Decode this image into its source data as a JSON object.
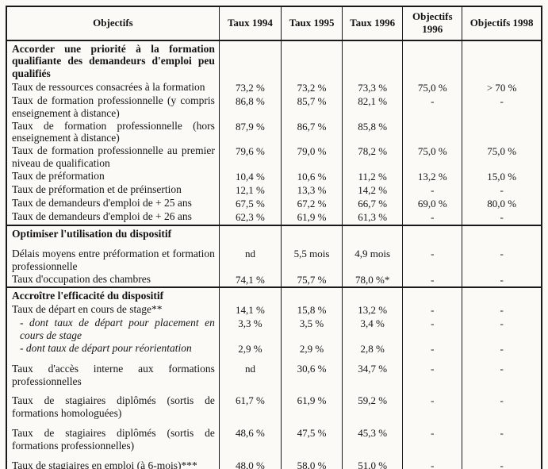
{
  "table": {
    "columns": [
      "Objectifs",
      "Taux 1994",
      "Taux 1995",
      "Taux 1996",
      "Objectifs 1996",
      "Objectifs 1998"
    ],
    "sections": [
      {
        "title": "Accorder une priorité à la formation qualifiante des demandeurs d'emploi peu qualifiés",
        "rows": [
          {
            "label": "Taux de ressources consacrées à la formation",
            "values": [
              "73,2 %",
              "73,2 %",
              "73,3 %",
              "75,0 %",
              "> 70 %"
            ]
          },
          {
            "label": "Taux de formation professionnelle (y compris enseignement à distance)",
            "values": [
              "86,8 %",
              "85,7 %",
              "82,1 %",
              "-",
              "-"
            ]
          },
          {
            "label": "Taux de formation professionnelle (hors enseignement à distance)",
            "values": [
              "87,9 %",
              "86,7 %",
              "85,8 %",
              "",
              ""
            ]
          },
          {
            "label": "Taux de formation professionnelle au premier niveau de qualification",
            "values": [
              "79,6 %",
              "79,0 %",
              "78,2 %",
              "75,0 %",
              "75,0 %"
            ]
          },
          {
            "label": "Taux de préformation",
            "values": [
              "10,4 %",
              "10,6 %",
              "11,2 %",
              "13,2 %",
              "15,0 %"
            ]
          },
          {
            "label": "Taux de préformation et de préinsertion",
            "values": [
              "12,1 %",
              "13,3 %",
              "14,2 %",
              "-",
              "-"
            ]
          },
          {
            "label": "Taux de demandeurs d'emploi de + 25 ans",
            "values": [
              "67,5 %",
              "67,2 %",
              "66,7 %",
              "69,0 %",
              "80,0 %"
            ]
          },
          {
            "label": "Taux de demandeurs d'emploi de + 26 ans",
            "values": [
              "62,3 %",
              "61,9 %",
              "61,3 %",
              "-",
              "-"
            ]
          }
        ]
      },
      {
        "title": "Optimiser l'utilisation du dispositif",
        "rows": [
          {
            "label": "Délais moyens entre préformation et formation professionnelle",
            "values": [
              "nd",
              "5,5 mois",
              "4,9 mois",
              "-",
              "-"
            ]
          },
          {
            "label": "Taux d'occupation des chambres",
            "values": [
              "74,1 %",
              "75,7 %",
              "78,0 %*",
              "-",
              "-"
            ]
          }
        ]
      },
      {
        "title": "Accroître l'efficacité du dispositif",
        "rows": [
          {
            "label": "Taux de départ en cours de stage**",
            "values": [
              "14,1 %",
              "15,8 %",
              "13,2 %",
              "-",
              "-"
            ]
          },
          {
            "label": "- dont taux de départ pour placement en cours de stage",
            "italic": true,
            "values": [
              "3,3 %",
              "3,5 %",
              "3,4 %",
              "-",
              "-"
            ]
          },
          {
            "label": "- dont taux de départ pour réorientation",
            "italic": true,
            "values": [
              "2,9 %",
              "2,9 %",
              "2,8 %",
              "-",
              "-"
            ]
          },
          {
            "label": "Taux d'accès interne aux formations professionnelles",
            "values": [
              "nd",
              "30,6 %",
              "34,7 %",
              "-",
              "-"
            ]
          },
          {
            "label": "Taux de stagiaires diplômés (sortis de formations homologuées)",
            "values": [
              "61,7 %",
              "61,9 %",
              "59,2 %",
              "-",
              "-"
            ]
          },
          {
            "label": "Taux de stagiaires diplômés (sortis de formations professionnelles)",
            "values": [
              "48,6 %",
              "47,5 %",
              "45,3 %",
              "-",
              "-"
            ]
          },
          {
            "label": "Taux de stagiaires en emploi (à 6-mois)***",
            "values": [
              "48,0 %",
              "58,0 %",
              "51,0 %",
              "-",
              "-"
            ]
          }
        ]
      }
    ]
  },
  "footer": {
    "dots": "....."
  }
}
